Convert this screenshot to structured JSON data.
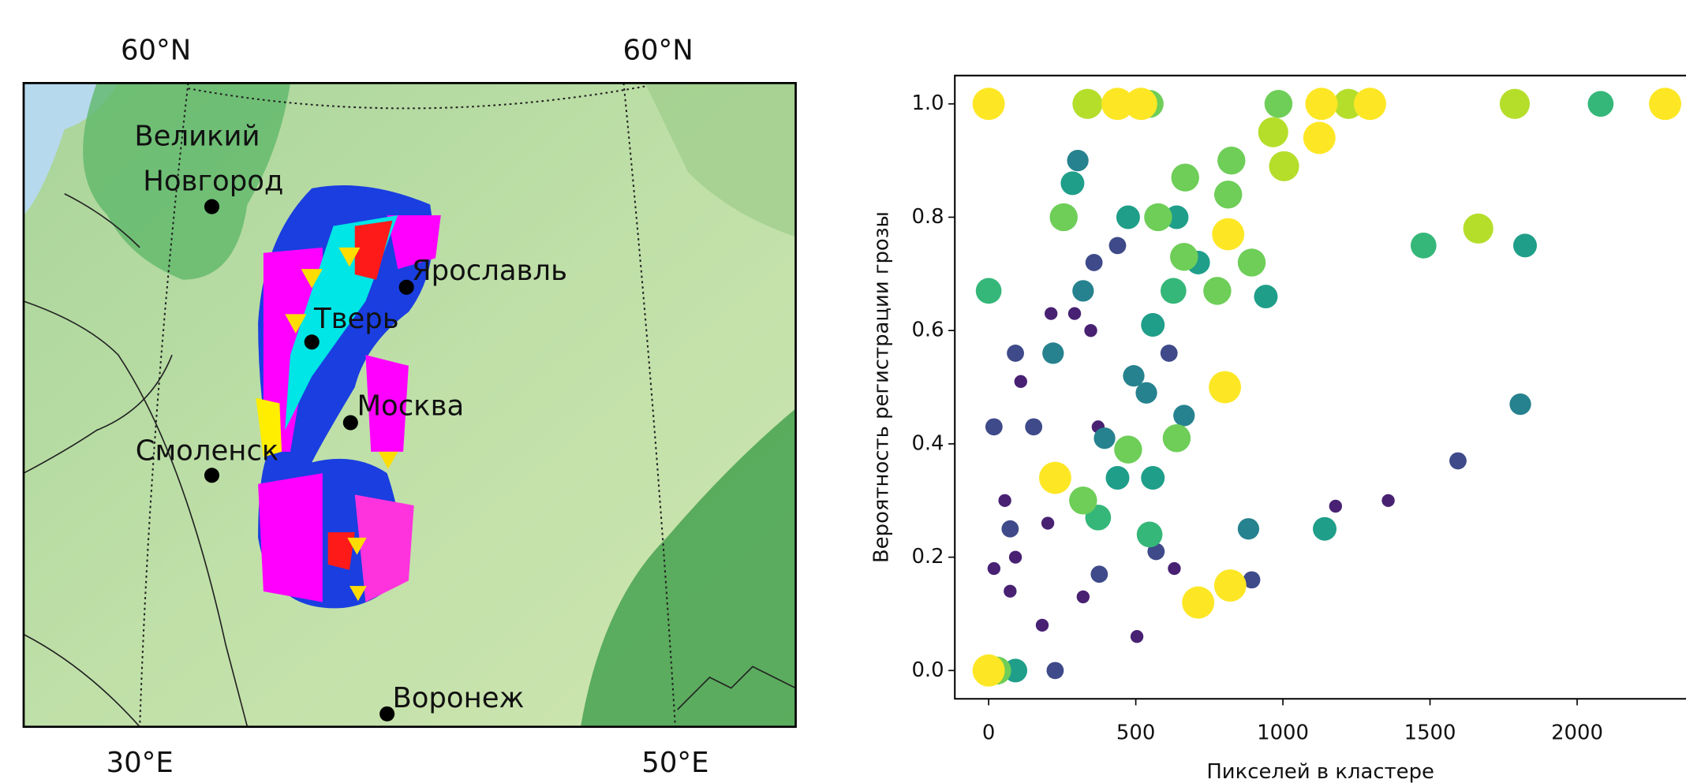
{
  "map": {
    "lat_labels": [
      "60°N",
      "60°N"
    ],
    "lon_labels": [
      "30°E",
      "50°E"
    ],
    "cities": [
      {
        "lines": [
          "Великий",
          "Новгород"
        ]
      },
      {
        "lines": [
          "Ярославль"
        ]
      },
      {
        "lines": [
          "Тверь"
        ]
      },
      {
        "lines": [
          "Москва"
        ]
      },
      {
        "lines": [
          "Смоленск"
        ]
      },
      {
        "lines": [
          "Воронеж"
        ]
      }
    ]
  },
  "chart_data": {
    "type": "scatter",
    "xlabel": "Пикселей в кластере",
    "ylabel": "Вероятность регистрации грозы",
    "xlim": [
      -115,
      2370
    ],
    "ylim": [
      -0.05,
      1.05
    ],
    "xticks": [
      0,
      500,
      1000,
      1500,
      2000
    ],
    "yticks": [
      {
        "value": 0,
        "label": "0.0"
      },
      0.2,
      0.4,
      0.6,
      0.8,
      {
        "value": 1,
        "label": "1.0"
      }
    ],
    "series": [
      {
        "color": "#482173",
        "x": [
          1358,
          1179,
          504,
          182,
          18,
          73,
          109,
          212,
          292,
          347,
          91,
          55,
          631,
          372,
          201,
          321
        ],
        "y": [
          0.3,
          0.29,
          0.06,
          0.08,
          0.18,
          0.14,
          0.51,
          0.63,
          0.63,
          0.6,
          0.2,
          0.3,
          0.18,
          0.43,
          0.26,
          0.13
        ]
      },
      {
        "color": "#3e4a89",
        "x": [
          1595,
          91,
          18,
          73,
          358,
          438,
          894,
          376,
          569,
          226,
          153,
          613
        ],
        "y": [
          0.37,
          0.56,
          0.43,
          0.25,
          0.72,
          0.75,
          0.16,
          0.17,
          0.21,
          0.0,
          0.43,
          0.56
        ]
      },
      {
        "color": "#26828e",
        "x": [
          303,
          1807,
          883,
          394,
          219,
          321,
          664,
          536,
          493
        ],
        "y": [
          0.9,
          0.47,
          0.25,
          0.41,
          0.56,
          0.67,
          0.45,
          0.49,
          0.52
        ]
      },
      {
        "color": "#1f9e89",
        "x": [
          285,
          474,
          639,
          712,
          558,
          942,
          1823,
          1142,
          558,
          438,
          91
        ],
        "y": [
          0.86,
          0.8,
          0.8,
          0.72,
          0.61,
          0.66,
          0.75,
          0.25,
          0.34,
          0.34,
          0.0
        ]
      },
      {
        "color": "#35b779",
        "x": [
          0,
          1478,
          2080,
          547,
          372,
          628
        ],
        "y": [
          0.67,
          0.75,
          1.0,
          0.24,
          0.27,
          0.67
        ]
      },
      {
        "color": "#6ece58",
        "x": [
          547,
          985,
          825,
          668,
          814,
          576,
          664,
          894,
          255,
          639,
          474,
          321,
          777,
          29
        ],
        "y": [
          1.0,
          1.0,
          0.9,
          0.87,
          0.84,
          0.8,
          0.73,
          0.72,
          0.8,
          0.41,
          0.39,
          0.3,
          0.67,
          0.0
        ]
      },
      {
        "color": "#b5de2b",
        "x": [
          967,
          1004,
          1223,
          336,
          1788,
          1664
        ],
        "y": [
          0.95,
          0.89,
          1.0,
          1.0,
          1.0,
          0.78
        ]
      },
      {
        "color": "#fde725",
        "x": [
          0,
          438,
          518,
          1131,
          1296,
          2299,
          1124,
          803,
          821,
          712,
          226,
          0,
          814
        ],
        "y": [
          1.0,
          1.0,
          1.0,
          1.0,
          1.0,
          1.0,
          0.94,
          0.5,
          0.15,
          0.12,
          0.34,
          0.0,
          0.77
        ]
      }
    ]
  }
}
